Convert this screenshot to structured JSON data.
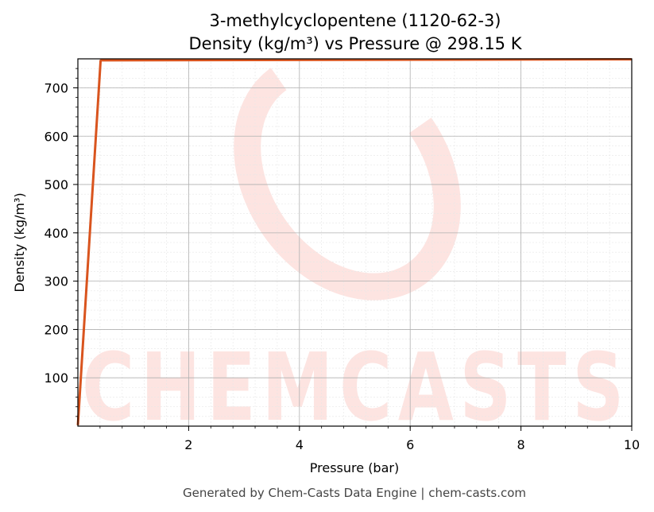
{
  "chart_data": {
    "type": "line",
    "title": "3-methylcyclopentene (1120-62-3)",
    "subtitle": "Density (kg/m³) vs Pressure @ 298.15 K",
    "xlabel": "Pressure (bar)",
    "ylabel": "Density (kg/m³)",
    "xlim": [
      0,
      10
    ],
    "ylim": [
      0,
      760
    ],
    "xticks": [
      2,
      4,
      6,
      8,
      10
    ],
    "yticks": [
      100,
      200,
      300,
      400,
      500,
      600,
      700
    ],
    "grid": true,
    "line_color": "#d9541e",
    "series": [
      {
        "x": [
          0.0,
          0.41,
          0.42,
          10.0
        ],
        "y": [
          2.0,
          756.0,
          757.0,
          759.0
        ]
      }
    ]
  },
  "watermark": {
    "text": "CHEMCASTS",
    "color": "#fde4e1"
  },
  "footer": "Generated by Chem-Casts Data Engine | chem-casts.com"
}
